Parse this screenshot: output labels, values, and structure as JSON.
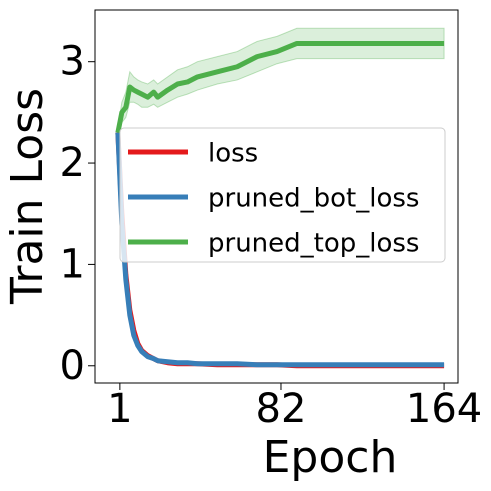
{
  "chart_data": {
    "type": "line",
    "xlabel": "Epoch",
    "ylabel": "Train Loss",
    "x": [
      0,
      2,
      4,
      6,
      8,
      10,
      12,
      15,
      18,
      20,
      25,
      30,
      35,
      40,
      50,
      60,
      70,
      80,
      90,
      100,
      120,
      140,
      164
    ],
    "series": [
      {
        "name": "loss",
        "color": "#e41a1c",
        "values": [
          2.3,
          1.5,
          0.9,
          0.55,
          0.35,
          0.22,
          0.15,
          0.1,
          0.07,
          0.05,
          0.03,
          0.02,
          0.02,
          0.02,
          0.01,
          0.01,
          0.01,
          0.01,
          0,
          0,
          0,
          0,
          0
        ]
      },
      {
        "name": "pruned_bot_loss",
        "color": "#377eb8",
        "values": [
          2.3,
          1.4,
          0.85,
          0.5,
          0.3,
          0.2,
          0.14,
          0.09,
          0.07,
          0.05,
          0.04,
          0.03,
          0.03,
          0.02,
          0.02,
          0.02,
          0.01,
          0.01,
          0.01,
          0.01,
          0.01,
          0.01,
          0.01
        ]
      },
      {
        "name": "pruned_top_loss",
        "color": "#4daf4a",
        "values": [
          2.3,
          2.5,
          2.55,
          2.75,
          2.72,
          2.7,
          2.68,
          2.65,
          2.7,
          2.65,
          2.72,
          2.78,
          2.8,
          2.85,
          2.9,
          2.95,
          3.05,
          3.1,
          3.18,
          3.18,
          3.18,
          3.18,
          3.18
        ],
        "lower": [
          2.25,
          2.4,
          2.45,
          2.6,
          2.6,
          2.58,
          2.55,
          2.55,
          2.58,
          2.55,
          2.6,
          2.65,
          2.68,
          2.72,
          2.78,
          2.82,
          2.9,
          2.98,
          3.03,
          3.03,
          3.03,
          3.03,
          3.03
        ],
        "upper": [
          2.35,
          2.6,
          2.7,
          2.9,
          2.85,
          2.82,
          2.8,
          2.78,
          2.82,
          2.78,
          2.85,
          2.92,
          2.95,
          3.0,
          3.05,
          3.1,
          3.2,
          3.25,
          3.33,
          3.33,
          3.33,
          3.33,
          3.33
        ]
      }
    ],
    "xlim": [
      -11.5,
      171
    ],
    "ylim": [
      -0.17,
      3.51
    ],
    "xticks": [
      1,
      82,
      164
    ],
    "yticks": [
      0,
      1,
      2,
      3
    ],
    "legend": "center right"
  }
}
